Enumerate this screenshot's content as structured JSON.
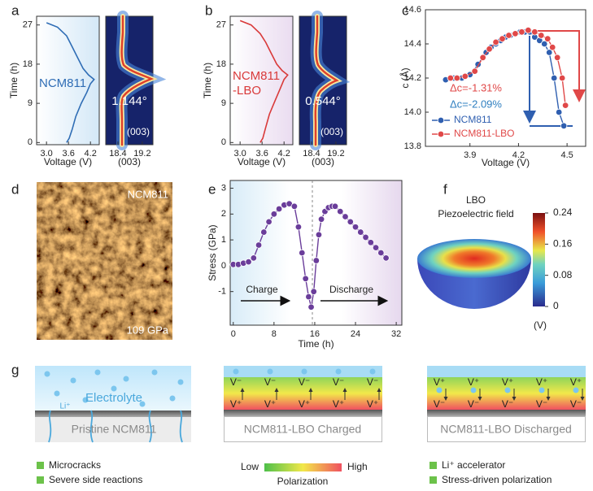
{
  "panel_labels": [
    "a",
    "b",
    "c",
    "d",
    "e",
    "f",
    "g"
  ],
  "panel_a": {
    "xlabel": "Voltage (V)",
    "ylabel": "Time (h)",
    "xlim": [
      2.73,
      4.44
    ],
    "xticks": [
      {
        "value": 3,
        "label": "3.0"
      },
      3.6,
      4.2
    ],
    "ylim": [
      -0.5,
      29
    ],
    "yticks": [
      0,
      9,
      18,
      27
    ],
    "curve": {
      "color": "#2f6db5",
      "x": [
        3.55,
        3.62,
        3.7,
        3.8,
        3.95,
        4.1,
        4.2,
        4.3,
        4.15,
        4.0,
        3.85,
        3.7,
        3.55,
        3.3,
        3.0
      ],
      "y": [
        0,
        1,
        3,
        6,
        9,
        11.5,
        13.5,
        14.5,
        15.5,
        17,
        19.5,
        22,
        24.5,
        26.5,
        27.5
      ]
    },
    "curve_label": "NCM811",
    "heat_xlabel": "(003)",
    "heat_xlim": [
      18.0,
      19.55
    ],
    "heat_xticks": [
      18.4,
      19.2
    ],
    "shift": "1.144°",
    "peak_label": "(003)"
  },
  "panel_b": {
    "xlabel": "Voltage (V)",
    "ylabel": "Time (h)",
    "xlim": [
      2.73,
      4.44
    ],
    "xticks": [
      {
        "value": 3,
        "label": "3.0"
      },
      3.6,
      4.2
    ],
    "ylim": [
      -0.5,
      29
    ],
    "yticks": [
      0,
      9,
      18,
      27
    ],
    "curve": {
      "color": "#d93a3a",
      "x": [
        3.55,
        3.62,
        3.7,
        3.8,
        3.95,
        4.1,
        4.2,
        4.3,
        4.15,
        4.0,
        3.85,
        3.7,
        3.55,
        3.3,
        3.0
      ],
      "y": [
        0,
        1,
        3.5,
        6.5,
        9.5,
        12.5,
        14.5,
        15.5,
        16.5,
        18,
        20.5,
        23,
        25,
        27,
        28
      ]
    },
    "curve_label": [
      "NCM811",
      "-LBO"
    ],
    "heat_xlabel": "(003)",
    "heat_xlim": [
      18.0,
      19.55
    ],
    "heat_xticks": [
      18.4,
      19.2
    ],
    "shift": "0.544°",
    "peak_label": "(003)"
  },
  "chart_data": [
    {
      "type": "line",
      "xlabel": "Voltage (V)",
      "ylabel": "c (Å)",
      "xlim": [
        3.625,
        4.615
      ],
      "ylim": [
        13.8,
        14.6
      ],
      "xticks": [
        3.9,
        4.2,
        4.5
      ],
      "yticks": [
        13.8,
        {
          "value": 14,
          "label": "14.0"
        },
        14.2,
        14.4,
        14.6
      ],
      "legend": "lower left",
      "series": [
        {
          "name": "NCM811",
          "color": "#2f5fb0",
          "x": [
            3.75,
            3.8,
            3.85,
            3.9,
            3.95,
            4.0,
            4.03,
            4.06,
            4.09,
            4.12,
            4.15,
            4.18,
            4.21,
            4.24,
            4.27,
            4.3,
            4.33,
            4.36,
            4.39,
            4.42,
            4.45,
            4.48
          ],
          "values": [
            14.19,
            14.2,
            14.2,
            14.22,
            14.28,
            14.35,
            14.38,
            14.4,
            14.42,
            14.44,
            14.45,
            14.46,
            14.47,
            14.47,
            14.47,
            14.44,
            14.42,
            14.4,
            14.35,
            14.2,
            14.0,
            13.92
          ]
        },
        {
          "name": "NCM811-LBO",
          "color": "#e04848",
          "x": [
            3.78,
            3.82,
            3.87,
            3.93,
            3.98,
            4.02,
            4.06,
            4.1,
            4.14,
            4.18,
            4.22,
            4.26,
            4.3,
            4.34,
            4.38,
            4.41,
            4.44,
            4.47,
            4.49
          ],
          "values": [
            14.2,
            14.2,
            14.21,
            14.24,
            14.32,
            14.37,
            14.41,
            14.43,
            14.45,
            14.46,
            14.47,
            14.48,
            14.47,
            14.45,
            14.43,
            14.38,
            14.32,
            14.2,
            14.04
          ]
        }
      ],
      "annotations": [
        {
          "text": "Δc=-1.31%",
          "color": "#e04848"
        },
        {
          "text": "Δc=-2.09%",
          "color": "#2f7fc0"
        }
      ]
    },
    {
      "type": "line",
      "xlabel": "Time (h)",
      "ylabel": "Stress (GPa)",
      "xlim": [
        -0.6,
        33.1
      ],
      "ylim": [
        -2.3,
        3.3
      ],
      "xticks": [
        0,
        8,
        16,
        24,
        32
      ],
      "yticks": [
        -1,
        0,
        1,
        2,
        3
      ],
      "color": "#6a3d9a",
      "x": [
        0,
        1,
        2,
        3,
        4,
        5,
        6,
        7,
        8,
        9,
        10,
        11,
        12,
        12.8,
        13.5,
        14.2,
        14.8,
        15.3,
        15.8,
        16.3,
        16.8,
        17.3,
        18,
        18.7,
        19.4,
        20,
        21,
        22,
        23,
        24,
        25,
        26,
        27,
        28,
        29,
        30
      ],
      "values": [
        0.05,
        0.05,
        0.1,
        0.15,
        0.3,
        0.8,
        1.3,
        1.7,
        2.0,
        2.2,
        2.35,
        2.4,
        2.3,
        1.5,
        0.5,
        -0.5,
        -1.2,
        -1.6,
        -1.0,
        0.2,
        1.2,
        1.8,
        2.1,
        2.25,
        2.3,
        2.3,
        2.1,
        1.9,
        1.7,
        1.5,
        1.3,
        1.1,
        0.9,
        0.7,
        0.5,
        0.3
      ],
      "annotations": [
        "Charge",
        "Discharge"
      ]
    }
  ],
  "panel_d": {
    "sample": "NCM811",
    "modulus": "109 GPa"
  },
  "panel_f": {
    "title": [
      "LBO",
      "Piezoelectric field"
    ],
    "colorbar_lim": [
      0,
      0.24
    ],
    "colorbar_ticks": [
      0,
      0.08,
      0.16,
      0.24
    ],
    "unit": "(V)"
  },
  "panel_g": {
    "pristine": {
      "electrolyte": "Electrolyte",
      "ion": "Li⁺",
      "layer": "Pristine NCM811",
      "legend": [
        "Microcracks",
        "Severe side reactions"
      ]
    },
    "charged": {
      "top": [
        "V⁻",
        "V⁻",
        "V⁻",
        "V⁻",
        "V⁻"
      ],
      "bottom": [
        "V⁺",
        "V⁺",
        "V⁺",
        "V⁺",
        "V⁺"
      ],
      "layer": "NCM811-LBO Charged"
    },
    "polarization": {
      "low": "Low",
      "high": "High",
      "label": "Polarization"
    },
    "discharged": {
      "top": [
        "V⁺",
        "V⁺",
        "V⁺",
        "V⁺",
        "V⁺"
      ],
      "bottom": [
        "V⁻",
        "V⁻",
        "V⁻",
        "V⁻",
        "V⁻"
      ],
      "layer": "NCM811-LBO Discharged",
      "legend": [
        "Li⁺ accelerator",
        "Stress-driven polarization"
      ]
    }
  }
}
